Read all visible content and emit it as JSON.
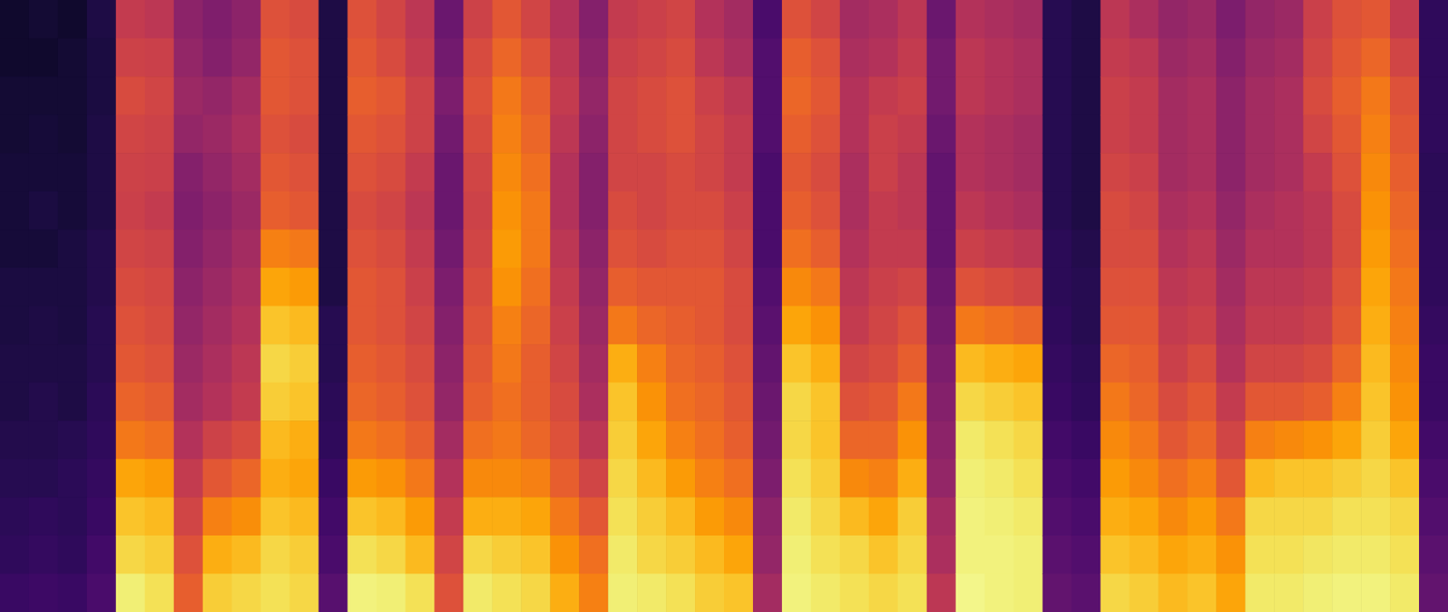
{
  "chart_data": {
    "type": "heatmap",
    "tick_labels": false,
    "zlim": [
      0,
      100
    ],
    "cells": [
      [
        8,
        8,
        9,
        9,
        10,
        10,
        10,
        11,
        11,
        12,
        12,
        13,
        14,
        15,
        16,
        18
      ],
      [
        9,
        8,
        9,
        10,
        10,
        11,
        10,
        11,
        12,
        12,
        13,
        13,
        14,
        16,
        17,
        19
      ],
      [
        8,
        9,
        9,
        9,
        10,
        10,
        11,
        11,
        11,
        12,
        12,
        14,
        15,
        15,
        16,
        18
      ],
      [
        12,
        11,
        11,
        12,
        12,
        12,
        13,
        13,
        14,
        14,
        15,
        16,
        17,
        18,
        20,
        22
      ],
      [
        52,
        55,
        58,
        56,
        55,
        54,
        56,
        58,
        60,
        62,
        65,
        70,
        80,
        86,
        90,
        95
      ],
      [
        50,
        54,
        56,
        55,
        54,
        52,
        55,
        57,
        58,
        60,
        63,
        68,
        78,
        84,
        88,
        92
      ],
      [
        38,
        40,
        42,
        40,
        36,
        35,
        36,
        38,
        40,
        42,
        44,
        48,
        52,
        56,
        60,
        64
      ],
      [
        35,
        36,
        40,
        42,
        40,
        38,
        40,
        42,
        44,
        46,
        48,
        55,
        62,
        72,
        82,
        88
      ],
      [
        38,
        40,
        44,
        46,
        44,
        42,
        44,
        46,
        48,
        50,
        52,
        58,
        66,
        75,
        84,
        90
      ],
      [
        60,
        62,
        62,
        60,
        62,
        64,
        72,
        80,
        86,
        90,
        88,
        84,
        82,
        86,
        90,
        92
      ],
      [
        58,
        60,
        60,
        58,
        60,
        62,
        70,
        78,
        84,
        88,
        86,
        82,
        80,
        84,
        88,
        90
      ],
      [
        12,
        12,
        12,
        12,
        12,
        12,
        12,
        12,
        14,
        14,
        15,
        16,
        18,
        20,
        22,
        25
      ],
      [
        60,
        62,
        64,
        62,
        60,
        58,
        60,
        62,
        62,
        64,
        66,
        70,
        78,
        86,
        92,
        96
      ],
      [
        56,
        58,
        62,
        60,
        58,
        56,
        58,
        60,
        60,
        62,
        64,
        68,
        76,
        84,
        90,
        95
      ],
      [
        50,
        52,
        55,
        55,
        52,
        50,
        52,
        54,
        56,
        58,
        60,
        64,
        70,
        78,
        84,
        92
      ],
      [
        30,
        32,
        34,
        32,
        30,
        30,
        32,
        34,
        36,
        38,
        40,
        44,
        48,
        52,
        56,
        60
      ],
      [
        55,
        58,
        60,
        58,
        56,
        55,
        56,
        58,
        60,
        62,
        64,
        68,
        74,
        82,
        90,
        94
      ],
      [
        62,
        66,
        70,
        72,
        74,
        76,
        78,
        76,
        72,
        70,
        68,
        70,
        74,
        82,
        88,
        92
      ],
      [
        56,
        60,
        64,
        66,
        68,
        70,
        70,
        68,
        66,
        64,
        64,
        66,
        72,
        80,
        86,
        90
      ],
      [
        48,
        50,
        52,
        50,
        48,
        48,
        50,
        52,
        54,
        56,
        58,
        60,
        64,
        70,
        76,
        82
      ],
      [
        36,
        38,
        40,
        38,
        36,
        36,
        38,
        40,
        42,
        44,
        46,
        50,
        56,
        62,
        68,
        72
      ],
      [
        52,
        54,
        56,
        56,
        56,
        58,
        60,
        64,
        70,
        82,
        86,
        88,
        90,
        92,
        94,
        95
      ],
      [
        54,
        56,
        58,
        58,
        56,
        56,
        58,
        62,
        66,
        72,
        76,
        80,
        84,
        88,
        90,
        94
      ],
      [
        56,
        58,
        60,
        60,
        58,
        58,
        60,
        62,
        64,
        66,
        68,
        72,
        78,
        84,
        88,
        92
      ],
      [
        48,
        50,
        54,
        56,
        56,
        58,
        60,
        62,
        62,
        64,
        66,
        68,
        72,
        78,
        84,
        88
      ],
      [
        44,
        46,
        50,
        52,
        52,
        54,
        56,
        58,
        58,
        60,
        62,
        64,
        68,
        74,
        80,
        86
      ],
      [
        22,
        24,
        24,
        24,
        22,
        22,
        22,
        24,
        26,
        28,
        30,
        32,
        34,
        38,
        40,
        44
      ],
      [
        60,
        64,
        66,
        64,
        62,
        64,
        68,
        74,
        80,
        86,
        90,
        90,
        92,
        94,
        95,
        96
      ],
      [
        56,
        60,
        62,
        60,
        58,
        60,
        64,
        70,
        76,
        82,
        86,
        86,
        88,
        90,
        92,
        94
      ],
      [
        44,
        46,
        48,
        48,
        46,
        46,
        48,
        50,
        52,
        56,
        60,
        66,
        74,
        84,
        90,
        92
      ],
      [
        46,
        48,
        52,
        54,
        54,
        52,
        52,
        54,
        56,
        58,
        62,
        66,
        72,
        80,
        86,
        90
      ],
      [
        50,
        52,
        54,
        52,
        50,
        50,
        52,
        56,
        60,
        64,
        70,
        76,
        82,
        88,
        90,
        92
      ],
      [
        30,
        32,
        32,
        30,
        28,
        28,
        28,
        30,
        32,
        34,
        36,
        38,
        40,
        44,
        46,
        50
      ],
      [
        48,
        50,
        50,
        48,
        48,
        50,
        54,
        60,
        70,
        84,
        90,
        94,
        95,
        96,
        96,
        97
      ],
      [
        46,
        48,
        48,
        46,
        46,
        48,
        52,
        58,
        68,
        82,
        88,
        92,
        94,
        95,
        96,
        96
      ],
      [
        44,
        46,
        46,
        44,
        44,
        46,
        50,
        56,
        66,
        80,
        86,
        90,
        92,
        94,
        95,
        95
      ],
      [
        14,
        14,
        14,
        14,
        14,
        14,
        15,
        15,
        16,
        17,
        18,
        20,
        22,
        24,
        26,
        28
      ],
      [
        12,
        12,
        12,
        12,
        12,
        12,
        13,
        14,
        14,
        15,
        16,
        18,
        20,
        22,
        24,
        26
      ],
      [
        50,
        52,
        54,
        54,
        56,
        58,
        58,
        60,
        62,
        66,
        70,
        74,
        78,
        82,
        86,
        90
      ],
      [
        46,
        50,
        52,
        52,
        54,
        56,
        58,
        60,
        62,
        64,
        66,
        70,
        74,
        80,
        84,
        88
      ],
      [
        40,
        42,
        44,
        44,
        44,
        46,
        48,
        50,
        52,
        54,
        58,
        62,
        68,
        74,
        80,
        84
      ],
      [
        42,
        44,
        46,
        46,
        46,
        48,
        50,
        52,
        54,
        58,
        62,
        66,
        72,
        78,
        82,
        86
      ],
      [
        34,
        36,
        38,
        38,
        38,
        40,
        42,
        44,
        46,
        48,
        52,
        56,
        62,
        70,
        76,
        80
      ],
      [
        40,
        42,
        44,
        44,
        44,
        46,
        48,
        50,
        52,
        56,
        62,
        72,
        84,
        90,
        92,
        94
      ],
      [
        42,
        44,
        46,
        46,
        46,
        48,
        48,
        50,
        52,
        56,
        62,
        74,
        86,
        90,
        92,
        94
      ],
      [
        54,
        56,
        58,
        56,
        52,
        50,
        50,
        52,
        54,
        58,
        64,
        76,
        86,
        90,
        93,
        95
      ],
      [
        60,
        62,
        64,
        62,
        60,
        58,
        58,
        60,
        62,
        66,
        72,
        80,
        88,
        92,
        94,
        96
      ],
      [
        62,
        66,
        70,
        72,
        74,
        76,
        78,
        80,
        82,
        84,
        86,
        88,
        90,
        92,
        94,
        96
      ],
      [
        52,
        56,
        60,
        62,
        64,
        66,
        68,
        70,
        72,
        74,
        76,
        80,
        86,
        90,
        92,
        94
      ],
      [
        16,
        16,
        16,
        16,
        15,
        15,
        16,
        16,
        17,
        18,
        18,
        20,
        22,
        24,
        26,
        28
      ]
    ]
  }
}
